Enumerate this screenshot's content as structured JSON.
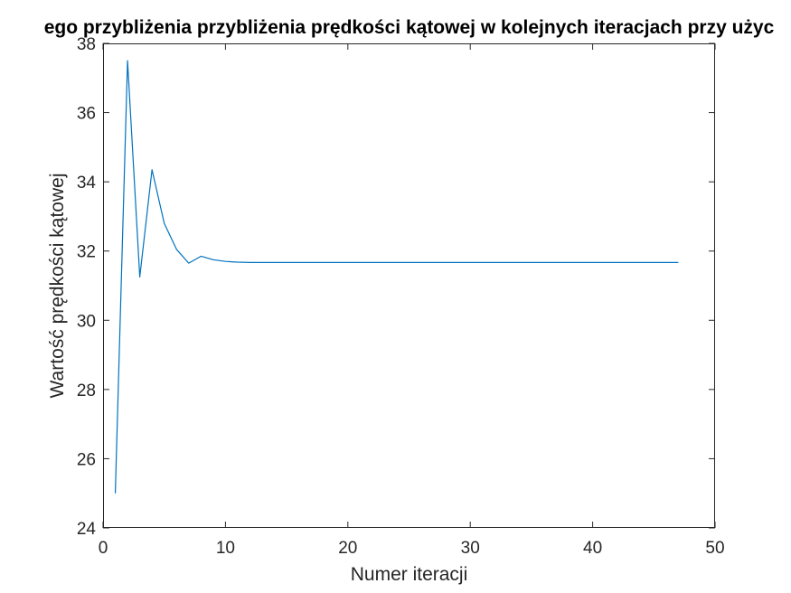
{
  "chart_data": {
    "type": "line",
    "title": "ego przybliżenia przybliżenia prędkości kątowej w kolejnych iteracjach przy użyc",
    "xlabel": "Numer iteracji",
    "ylabel": "Wartość prędkości kątowej",
    "xlim": [
      0,
      50
    ],
    "ylim": [
      24,
      38
    ],
    "xticks": [
      0,
      10,
      20,
      30,
      40,
      50
    ],
    "yticks": [
      24,
      26,
      28,
      30,
      32,
      34,
      36,
      38
    ],
    "grid": false,
    "series": [
      {
        "color": "#0072BD",
        "x": [
          1,
          2,
          3,
          4,
          5,
          6,
          7,
          8,
          9,
          10,
          11,
          12,
          13,
          14,
          15,
          16,
          17,
          18,
          19,
          20,
          21,
          22,
          23,
          24,
          25,
          26,
          27,
          28,
          29,
          30,
          31,
          32,
          33,
          34,
          35,
          36,
          37,
          38,
          39,
          40,
          41,
          42,
          43,
          44,
          45,
          46,
          47
        ],
        "y": [
          25.0,
          37.5,
          31.25,
          34.35,
          32.8,
          32.05,
          31.65,
          31.85,
          31.75,
          31.7,
          31.68,
          31.67,
          31.67,
          31.67,
          31.67,
          31.67,
          31.67,
          31.67,
          31.67,
          31.67,
          31.67,
          31.67,
          31.67,
          31.67,
          31.67,
          31.67,
          31.67,
          31.67,
          31.67,
          31.67,
          31.67,
          31.67,
          31.67,
          31.67,
          31.67,
          31.67,
          31.67,
          31.67,
          31.67,
          31.67,
          31.67,
          31.67,
          31.67,
          31.67,
          31.67,
          31.67,
          31.67
        ]
      }
    ]
  }
}
